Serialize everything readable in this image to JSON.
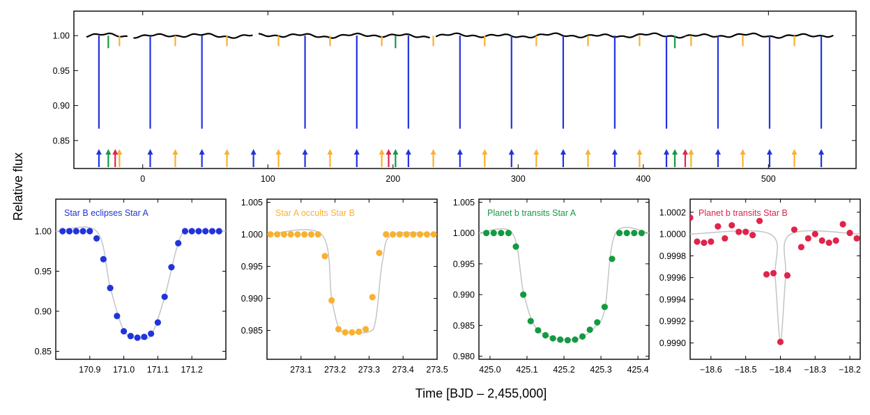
{
  "figure": {
    "ylabel": "Relative flux",
    "xlabel": "Time [BJD – 2,455,000]"
  },
  "colors": {
    "blue": "#2233dd",
    "orange": "#f9b131",
    "green": "#139a43",
    "red": "#e0244a",
    "model": "#c4c4c4",
    "lightcurve": "#000000"
  },
  "chart_data": [
    {
      "id": "full",
      "type": "line",
      "title": "",
      "xlabel": "",
      "ylabel": "Relative flux",
      "xlim": [
        -55,
        570
      ],
      "ylim": [
        0.81,
        1.035
      ],
      "xticks": [
        0,
        100,
        200,
        300,
        400,
        500
      ],
      "xticklabels": [
        "0",
        "100",
        "200",
        "300",
        "400",
        "500"
      ],
      "yticks": [
        0.85,
        0.9,
        0.95,
        1.0
      ],
      "yticklabels": [
        "0.85",
        "0.90",
        "0.95",
        "1.00"
      ],
      "baseline": 1.0,
      "gaps": [
        [
          -12,
          -8
        ],
        [
          88,
          92
        ],
        [
          230,
          234
        ]
      ],
      "events": [
        {
          "type": "Star B eclipses Star A",
          "color": "blue",
          "depth": 0.867,
          "times": [
            -35.0,
            6.0,
            47.3,
            129.7,
            171.05,
            212.3,
            253.5,
            294.7,
            336.0,
            377.2,
            418.5,
            459.7,
            500.9,
            542.2
          ]
        },
        {
          "type": "Star A occults Star B",
          "color": "orange",
          "depth": 0.985,
          "times": [
            -18.6,
            26.0,
            67.3,
            108.5,
            149.7,
            191.0,
            232.2,
            273.25,
            314.5,
            355.8,
            397.0,
            438.2,
            479.5,
            520.7
          ]
        },
        {
          "type": "Planet b transits Star A",
          "color": "green",
          "depth": 0.982,
          "times": [
            -27.5,
            202.0,
            425.2
          ]
        },
        {
          "type": "Planet b transits Star B",
          "color": "red",
          "depth": 0.999,
          "times": [
            -22.0,
            196.5,
            433.5
          ]
        },
        {
          "type": "Star A at period 41.1 (marker only)",
          "color": "blue",
          "depth": null,
          "times": [
            88.5
          ]
        }
      ]
    },
    {
      "id": "panel1",
      "type": "scatter",
      "title": "Star B eclipses Star A",
      "color": "blue",
      "xlim": [
        170.8,
        171.3
      ],
      "ylim": [
        0.84,
        1.04
      ],
      "xticks": [
        170.9,
        171.0,
        171.1,
        171.2
      ],
      "xticklabels": [
        "170.9",
        "171.0",
        "171.1",
        "171.2"
      ],
      "yticks": [
        0.85,
        0.9,
        0.95,
        1.0
      ],
      "yticklabels": [
        "0.85",
        "0.90",
        "0.95",
        "1.00"
      ],
      "x": [
        170.82,
        170.84,
        170.86,
        170.88,
        170.9,
        170.92,
        170.94,
        170.96,
        170.98,
        171.0,
        171.02,
        171.04,
        171.06,
        171.08,
        171.1,
        171.12,
        171.14,
        171.16,
        171.18,
        171.2,
        171.22,
        171.24,
        171.26,
        171.28
      ],
      "y": [
        1.0,
        1.0,
        1.0,
        1.0,
        1.0,
        0.991,
        0.965,
        0.929,
        0.894,
        0.875,
        0.869,
        0.867,
        0.868,
        0.872,
        0.886,
        0.918,
        0.955,
        0.985,
        1.0,
        1.0,
        1.0,
        1.0,
        1.0,
        1.0
      ],
      "model_x": [
        170.8,
        170.92,
        170.96,
        171.0,
        171.04,
        171.08,
        171.12,
        171.16,
        171.19,
        171.3
      ],
      "model_y": [
        1.0,
        1.0,
        0.93,
        0.876,
        0.867,
        0.87,
        0.918,
        0.985,
        1.0,
        1.0
      ]
    },
    {
      "id": "panel2",
      "type": "scatter",
      "title": "Star A occults Star B",
      "color": "orange",
      "xlim": [
        273.0,
        273.5
      ],
      "ylim": [
        0.9805,
        1.0055
      ],
      "xticks": [
        273.1,
        273.2,
        273.3,
        273.4,
        273.5
      ],
      "xticklabels": [
        "273.1",
        "273.2",
        "273.3",
        "273.4",
        "273.5"
      ],
      "yticks": [
        0.985,
        0.99,
        0.995,
        1.0,
        1.005
      ],
      "yticklabels": [
        "0.985",
        "0.990",
        "0.995",
        "1.000",
        "1.005"
      ],
      "x": [
        273.01,
        273.03,
        273.05,
        273.07,
        273.09,
        273.11,
        273.13,
        273.15,
        273.17,
        273.19,
        273.21,
        273.23,
        273.25,
        273.27,
        273.29,
        273.31,
        273.33,
        273.35,
        273.37,
        273.39,
        273.41,
        273.43,
        273.45,
        273.47,
        273.49
      ],
      "y": [
        1.0,
        1.0,
        1.0,
        1.0,
        1.0,
        1.0,
        1.0,
        1.0,
        0.9966,
        0.9897,
        0.9852,
        0.9847,
        0.9847,
        0.9848,
        0.9852,
        0.9902,
        0.9971,
        1.0,
        1.0,
        1.0,
        1.0,
        1.0,
        1.0,
        1.0,
        1.0
      ],
      "model_x": [
        273.0,
        273.16,
        273.19,
        273.21,
        273.23,
        273.3,
        273.32,
        273.34,
        273.37,
        273.5
      ],
      "model_y": [
        1.0,
        1.0,
        0.99,
        0.9855,
        0.9848,
        0.9848,
        0.9868,
        0.996,
        1.0,
        1.0
      ]
    },
    {
      "id": "panel3",
      "type": "scatter",
      "title": "Planet b transits Star A",
      "color": "green",
      "xlim": [
        424.97,
        425.43
      ],
      "ylim": [
        0.9795,
        1.0055
      ],
      "xticks": [
        425.0,
        425.1,
        425.2,
        425.3,
        425.4
      ],
      "xticklabels": [
        "425.0",
        "425.1",
        "425.2",
        "425.3",
        "425.4"
      ],
      "yticks": [
        0.98,
        0.985,
        0.99,
        0.995,
        1.0,
        1.005
      ],
      "yticklabels": [
        "0.980",
        "0.985",
        "0.990",
        "0.995",
        "1.000",
        "1.005"
      ],
      "x": [
        424.99,
        425.01,
        425.03,
        425.05,
        425.07,
        425.09,
        425.11,
        425.13,
        425.15,
        425.17,
        425.19,
        425.21,
        425.23,
        425.25,
        425.27,
        425.29,
        425.31,
        425.33,
        425.35,
        425.37,
        425.39,
        425.41
      ],
      "y": [
        1.0,
        1.0,
        1.0,
        1.0,
        0.9978,
        0.99,
        0.9857,
        0.9842,
        0.9834,
        0.9829,
        0.9827,
        0.9826,
        0.9827,
        0.9832,
        0.9843,
        0.9855,
        0.988,
        0.9958,
        1.0,
        1.0,
        1.0,
        1.0
      ],
      "model_x": [
        424.97,
        425.06,
        425.09,
        425.12,
        425.16,
        425.2,
        425.24,
        425.28,
        425.31,
        425.34,
        425.43
      ],
      "model_y": [
        1.0,
        1.0,
        0.9905,
        0.985,
        0.9832,
        0.9827,
        0.9829,
        0.9845,
        0.9875,
        1.0,
        1.0
      ]
    },
    {
      "id": "panel4",
      "type": "scatter",
      "title": "Planet b transits Star B",
      "color": "red",
      "xlim": [
        -18.66,
        -18.17
      ],
      "ylim": [
        0.99885,
        1.00032
      ],
      "xticks": [
        -18.6,
        -18.5,
        -18.4,
        -18.3,
        -18.2
      ],
      "xticklabels": [
        "−18.6",
        "−18.5",
        "−18.4",
        "−18.3",
        "−18.2"
      ],
      "yticks": [
        0.999,
        0.9992,
        0.9994,
        0.9996,
        0.9998,
        1.0,
        1.0002
      ],
      "yticklabels": [
        "0.9990",
        "0.9992",
        "0.9994",
        "0.9996",
        "0.9998",
        "1.0000",
        "1.0002"
      ],
      "x": [
        -18.66,
        -18.64,
        -18.62,
        -18.6,
        -18.58,
        -18.56,
        -18.54,
        -18.52,
        -18.5,
        -18.48,
        -18.46,
        -18.44,
        -18.42,
        -18.4,
        -18.38,
        -18.36,
        -18.34,
        -18.32,
        -18.3,
        -18.28,
        -18.26,
        -18.24,
        -18.22,
        -18.2,
        -18.18
      ],
      "y": [
        1.00015,
        0.99993,
        0.99992,
        0.99993,
        1.00007,
        0.99996,
        1.00008,
        1.00002,
        1.00002,
        0.99999,
        1.00012,
        0.99963,
        0.99964,
        0.99901,
        0.99962,
        1.00004,
        0.99988,
        0.99996,
        1.0,
        0.99994,
        0.99992,
        0.99994,
        1.00009,
        1.00001,
        0.99996
      ],
      "model_x": [
        -18.66,
        -18.43,
        -18.415,
        -18.4,
        -18.385,
        -18.37,
        -18.17
      ],
      "model_y": [
        1.0,
        1.0,
        0.9996,
        0.99902,
        0.9996,
        1.0,
        1.0
      ]
    }
  ]
}
